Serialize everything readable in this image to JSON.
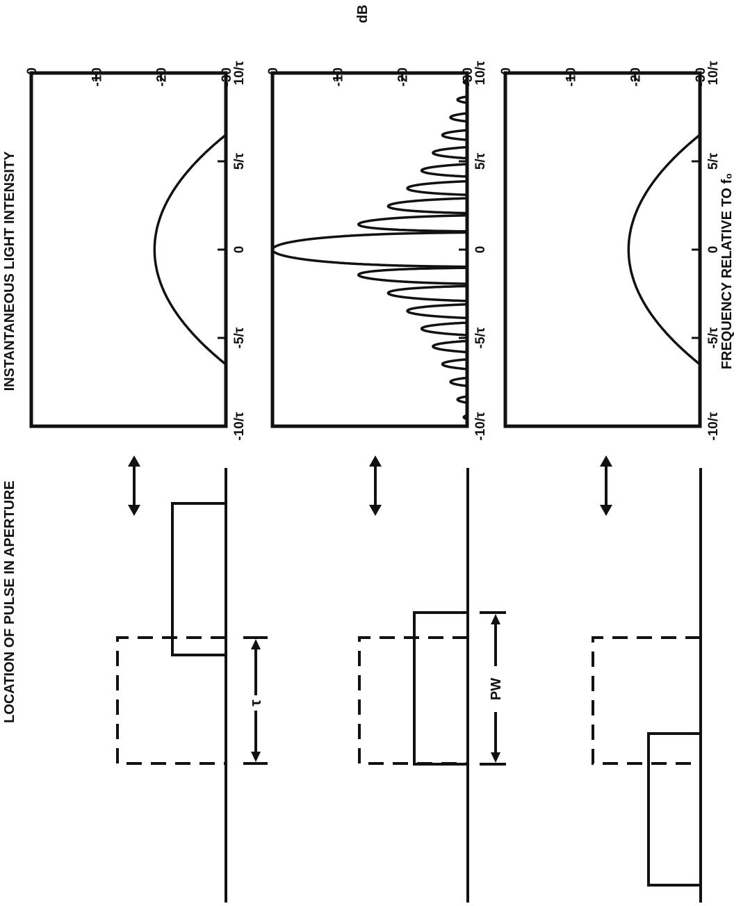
{
  "figure": {
    "left_title": "LOCATION OF PULSE IN APERTURE",
    "right_title": "INSTANTANEOUS LIGHT INTENSITY",
    "db_axis_label": "dB",
    "freq_axis_label": "FREQUENCY RELATIVE TO f₀",
    "tau_label": "τ",
    "pw_label": "PW",
    "db_ticks": [
      "0",
      "-10",
      "-20",
      "-30"
    ],
    "freq_ticks": [
      "10/τ",
      "5/τ",
      "0",
      "-5/τ",
      "-10/τ"
    ]
  },
  "chart_data": [
    {
      "type": "line",
      "panel": "pulse partially in aperture (leading edge)",
      "x_range": [
        -10,
        10
      ],
      "y_range": [
        -30,
        0
      ],
      "envelope_db_at_center": -19,
      "envelope_db_at_edges": -30,
      "edges_at_x": [
        -6.5,
        6.5
      ]
    },
    {
      "type": "line",
      "panel": "pulse centered in aperture",
      "x_range": [
        -10,
        10
      ],
      "y_range": [
        -30,
        0
      ],
      "main_lobe_peak_db": 0,
      "sidelobe_peaks_db": [
        -13.5,
        -18,
        -21,
        -23,
        -25,
        -26,
        -27,
        -28,
        -29
      ]
    },
    {
      "type": "line",
      "panel": "pulse partially in aperture (trailing edge)",
      "x_range": [
        -10,
        10
      ],
      "y_range": [
        -30,
        0
      ],
      "envelope_db_at_center": -19,
      "envelope_db_at_edges": -30,
      "edges_at_x": [
        -6.5,
        6.5
      ]
    }
  ]
}
